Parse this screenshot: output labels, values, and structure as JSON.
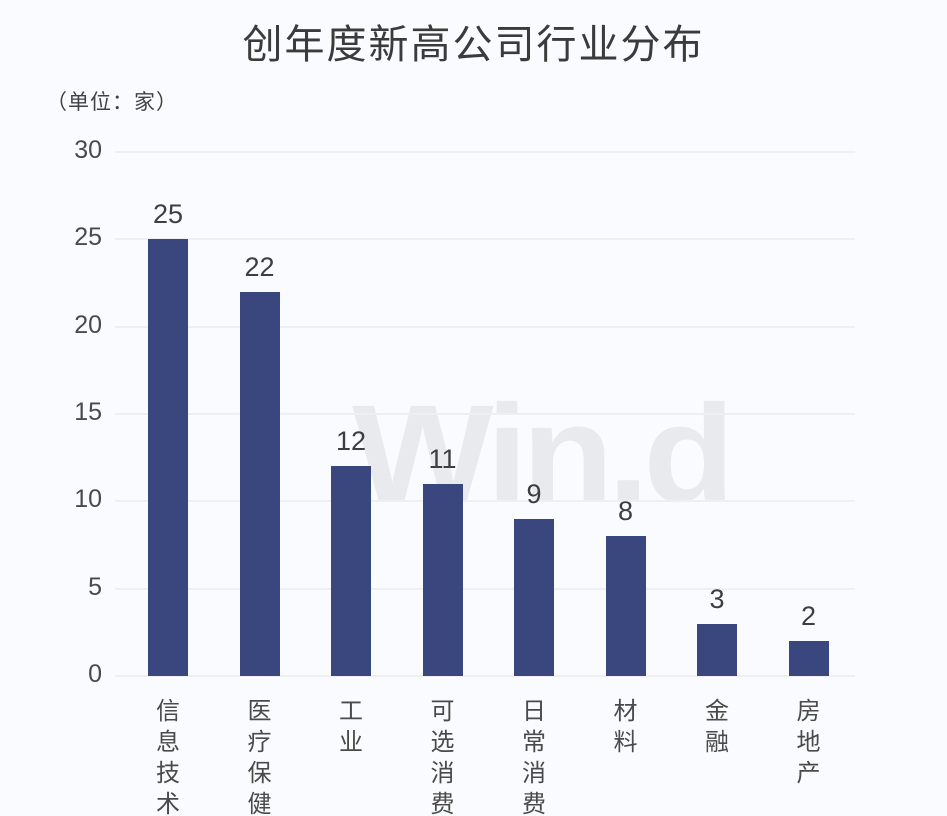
{
  "chart": {
    "title": "创年度新高公司行业分布",
    "unit_label": "（单位：家）",
    "watermark": "Win.d"
  },
  "colors": {
    "background": "#fafbfe",
    "bar": "#3a477e",
    "gridline": "#efeff1",
    "title_text": "#3b3b3b",
    "axis_text": "#4a4a4a",
    "value_label_text": "#3d3d42",
    "watermark_text": "#e9eaee"
  },
  "chart_data": {
    "type": "bar",
    "title": "创年度新高公司行业分布",
    "unit": "（单位：家）",
    "categories": [
      "信息技术",
      "医疗保健",
      "工业",
      "可选消费",
      "日常消费",
      "材料",
      "金融",
      "房地产"
    ],
    "values": [
      25,
      22,
      12,
      11,
      9,
      8,
      3,
      2
    ],
    "xlabel": "",
    "ylabel": "",
    "ylim": [
      0,
      30
    ],
    "yticks": [
      0,
      5,
      10,
      15,
      20,
      25,
      30
    ],
    "grid": true,
    "legend": false,
    "data_labels": true,
    "category_orientation": "vertical",
    "watermark": "Win.d"
  }
}
